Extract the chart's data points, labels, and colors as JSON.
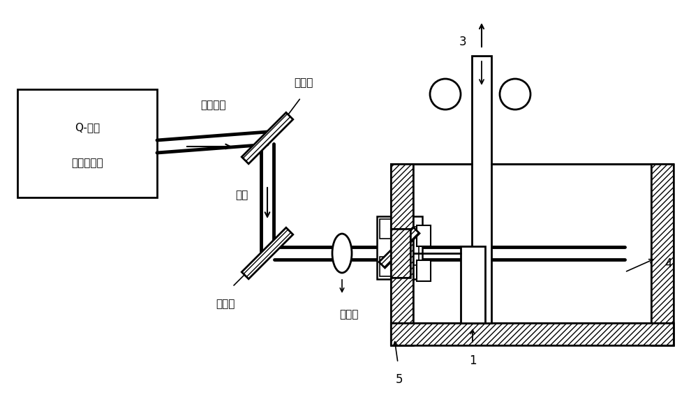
{
  "bg_color": "#ffffff",
  "line_color": "#000000",
  "labels": {
    "Q_laser_line1": "Q-开关",
    "Q_laser_line2": "脉冲激光器",
    "pulse_laser": "脉冲激光",
    "mirror1": "反射镜",
    "mirror2": "反射镜",
    "optical_path": "光路",
    "focus_lens": "聚焦镜",
    "label1": "1",
    "label3": "3",
    "label4": "4",
    "label5": "5"
  },
  "figsize": [
    10.0,
    5.69
  ],
  "dpi": 100
}
